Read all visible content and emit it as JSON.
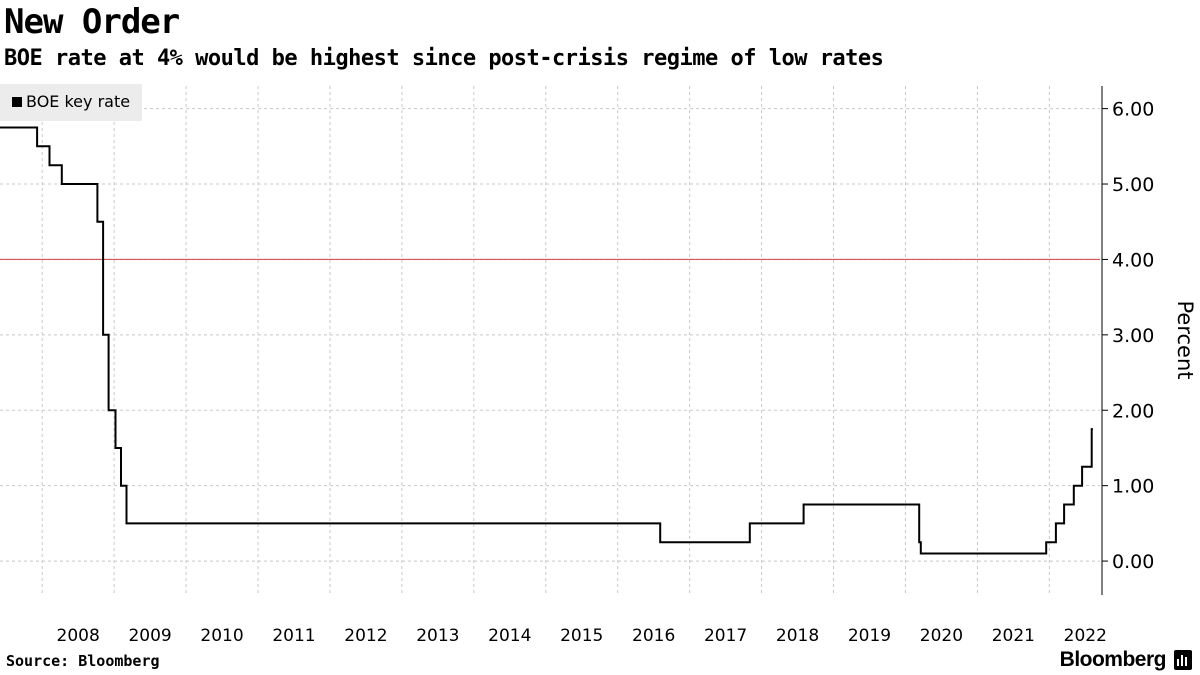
{
  "header": {
    "title": "New Order",
    "subtitle": "BOE rate at 4% would be highest since post-crisis regime of low rates"
  },
  "footer": {
    "source": "Source: Bloomberg",
    "brand": "Bloomberg",
    "brand_icon": "bloomberg-terminal-icon"
  },
  "colors": {
    "series": "#000000",
    "reference_line": "#d04040",
    "grid": "#c8c8c8",
    "legend_bg": "#ececec"
  },
  "chart_data": {
    "type": "line",
    "step": true,
    "title": "New Order",
    "subtitle": "BOE rate at 4% would be highest since post-crisis regime of low rates",
    "xlabel": "",
    "ylabel": "Percent",
    "y_axis_side": "right",
    "ylim": [
      -0.45,
      6.3
    ],
    "xlim": [
      "2007-06-01",
      "2022-09-15"
    ],
    "yticks": [
      0,
      1,
      2,
      3,
      4,
      5,
      6
    ],
    "ytick_labels": [
      "0.00",
      "1.00",
      "2.00",
      "3.00",
      "4.00",
      "5.00",
      "6.00"
    ],
    "xtick_labels": [
      "2008",
      "2009",
      "2010",
      "2011",
      "2012",
      "2013",
      "2014",
      "2015",
      "2016",
      "2017",
      "2018",
      "2019",
      "2020",
      "2021",
      "2022"
    ],
    "grid": true,
    "legend": {
      "position": "top-left",
      "entries": [
        "BOE key rate"
      ]
    },
    "reference_lines": [
      {
        "y": 4.0,
        "label": ""
      }
    ],
    "series": [
      {
        "name": "BOE key rate",
        "points": [
          [
            "2007-06-01",
            5.75
          ],
          [
            "2007-12-06",
            5.5
          ],
          [
            "2008-02-07",
            5.25
          ],
          [
            "2008-04-10",
            5.0
          ],
          [
            "2008-10-08",
            4.5
          ],
          [
            "2008-11-06",
            3.0
          ],
          [
            "2008-12-04",
            2.0
          ],
          [
            "2009-01-08",
            1.5
          ],
          [
            "2009-02-05",
            1.0
          ],
          [
            "2009-03-05",
            0.5
          ],
          [
            "2016-08-04",
            0.25
          ],
          [
            "2017-11-02",
            0.5
          ],
          [
            "2018-08-02",
            0.75
          ],
          [
            "2020-03-11",
            0.25
          ],
          [
            "2020-03-19",
            0.1
          ],
          [
            "2021-12-16",
            0.25
          ],
          [
            "2022-02-03",
            0.5
          ],
          [
            "2022-03-17",
            0.75
          ],
          [
            "2022-05-05",
            1.0
          ],
          [
            "2022-06-16",
            1.25
          ],
          [
            "2022-08-04",
            1.75
          ],
          [
            "2022-08-10",
            1.75
          ]
        ]
      }
    ]
  }
}
